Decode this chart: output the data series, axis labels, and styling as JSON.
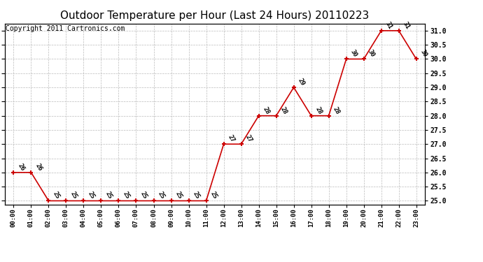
{
  "title": "Outdoor Temperature per Hour (Last 24 Hours) 20110223",
  "copyright": "Copyright 2011 Cartronics.com",
  "hours": [
    "00:00",
    "01:00",
    "02:00",
    "03:00",
    "04:00",
    "05:00",
    "06:00",
    "07:00",
    "08:00",
    "09:00",
    "10:00",
    "11:00",
    "12:00",
    "13:00",
    "14:00",
    "15:00",
    "16:00",
    "17:00",
    "18:00",
    "19:00",
    "20:00",
    "21:00",
    "22:00",
    "23:00"
  ],
  "temperatures": [
    26,
    26,
    25,
    25,
    25,
    25,
    25,
    25,
    25,
    25,
    25,
    25,
    27,
    27,
    28,
    28,
    29,
    28,
    28,
    30,
    30,
    31,
    31,
    30
  ],
  "ylim": [
    24.875,
    31.25
  ],
  "yticks": [
    25.0,
    25.5,
    26.0,
    26.5,
    27.0,
    27.5,
    28.0,
    28.5,
    29.0,
    29.5,
    30.0,
    30.5,
    31.0
  ],
  "line_color": "#cc0000",
  "marker_color": "#cc0000",
  "background_color": "#ffffff",
  "grid_color": "#bbbbbb",
  "title_fontsize": 11,
  "copyright_fontsize": 7,
  "annotation_fontsize": 6.5,
  "annotation_rotation": -60
}
